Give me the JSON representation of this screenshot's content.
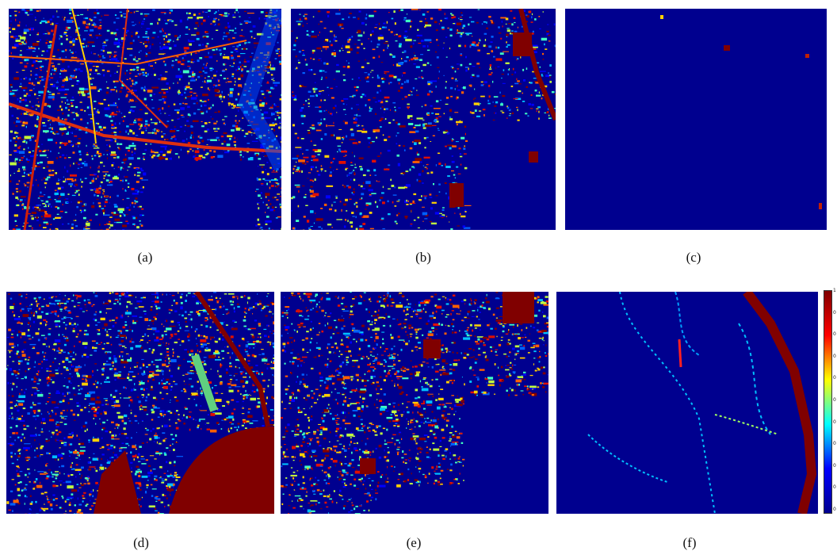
{
  "figure": {
    "panels": [
      {
        "id": "a",
        "caption": "(a)"
      },
      {
        "id": "b",
        "caption": "(b)"
      },
      {
        "id": "c",
        "caption": "(c)"
      },
      {
        "id": "d",
        "caption": "(d)"
      },
      {
        "id": "e",
        "caption": "(e)"
      },
      {
        "id": "f",
        "caption": "(f)"
      }
    ],
    "colormap": {
      "name": "jet",
      "low_color": "#00008f",
      "high_color": "#800000",
      "stops": [
        "#00008f",
        "#0000ff",
        "#00ffff",
        "#ffff00",
        "#ff0000",
        "#800000"
      ]
    },
    "colorbar_ticks": [
      "1",
      "0",
      "0",
      "0",
      "0",
      "0",
      "0",
      "0",
      "0",
      "0",
      "0"
    ]
  }
}
